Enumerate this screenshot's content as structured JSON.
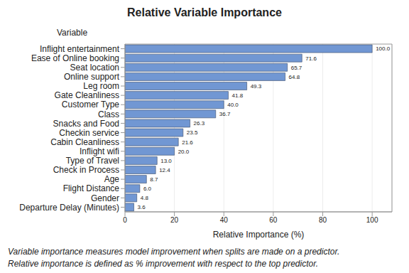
{
  "chart_data": {
    "type": "bar",
    "orientation": "horizontal",
    "title": "Relative Variable Importance",
    "y_label": "Variable",
    "x_label": "Relative Importance (%)",
    "annotations": [
      "Variable importance measures model improvement when splits are made on a predictor.",
      "Relative importance is defined as % improvement with respect to the top predictor."
    ],
    "categories": [
      "Inflight entertainment",
      "Ease of Online booking",
      "Seat location",
      "Online support",
      "Leg room",
      "Gate Cleanliness",
      "Customer Type",
      "Class",
      "Snacks and Food",
      "Checkin service",
      "Cabin Cleanliness",
      "Inflight wifi",
      "Type of Travel",
      "Check in Process",
      "Age",
      "Flight Distance",
      "Gender",
      "Departure Delay (Minutes)"
    ],
    "values": [
      100,
      71.6,
      65.7,
      64.8,
      49.3,
      41.8,
      40,
      36.7,
      26.3,
      23.5,
      21.6,
      20,
      13,
      12.4,
      8.7,
      6,
      4.8,
      3.6
    ],
    "value_labels": [
      "100.0",
      "71.6",
      "65.7",
      "64.8",
      "49.3",
      "41.8",
      "40.0",
      "36.7",
      "26.3",
      "23.5",
      "21.6",
      "20.0",
      "13.0",
      "12.4",
      "8.7",
      "6.0",
      "4.8",
      "3.6"
    ],
    "data_labels": true,
    "color": "#7197d3",
    "xlim": [
      0,
      108
    ],
    "xticks": [
      0,
      20,
      40,
      60,
      80,
      100
    ],
    "grid": true
  }
}
